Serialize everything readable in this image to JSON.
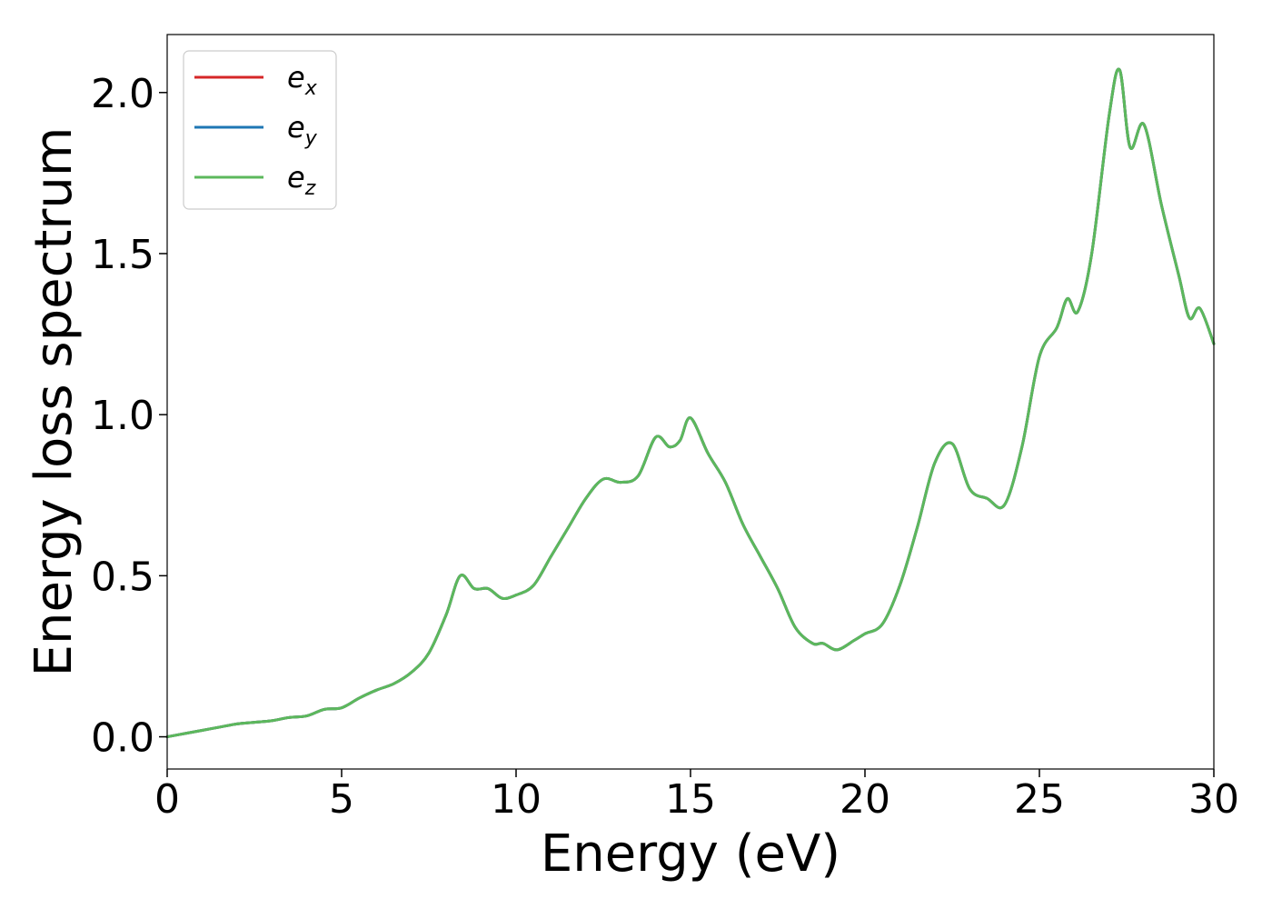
{
  "chart_data": {
    "type": "line",
    "xlabel": "Energy (eV)",
    "ylabel": "Energy loss spectrum",
    "xlim": [
      0,
      30
    ],
    "ylim": [
      -0.1,
      2.18
    ],
    "xticks": [
      0,
      5,
      10,
      15,
      20,
      25,
      30
    ],
    "xtick_labels": [
      "0",
      "5",
      "10",
      "15",
      "20",
      "25",
      "30"
    ],
    "yticks": [
      0.0,
      0.5,
      1.0,
      1.5,
      2.0
    ],
    "ytick_labels": [
      "0.0",
      "0.5",
      "1.0",
      "1.5",
      "2.0"
    ],
    "grid": false,
    "legend_position": "top-left",
    "x": [
      0,
      0.5,
      1,
      1.5,
      2,
      2.5,
      3,
      3.5,
      4,
      4.5,
      5,
      5.5,
      6,
      6.5,
      7,
      7.5,
      8,
      8.4,
      8.8,
      9.2,
      9.6,
      10,
      10.5,
      11,
      11.5,
      12,
      12.5,
      13,
      13.5,
      14,
      14.4,
      14.7,
      15,
      15.5,
      16,
      16.5,
      17,
      17.5,
      18,
      18.5,
      18.8,
      19.2,
      19.7,
      20,
      20.5,
      21,
      21.5,
      22,
      22.5,
      23,
      23.5,
      24,
      24.5,
      25,
      25.5,
      25.8,
      26.1,
      26.5,
      27,
      27.3,
      27.6,
      28,
      28.5,
      29,
      29.3,
      29.6,
      30
    ],
    "series": [
      {
        "name": "e_x",
        "color": "#d62728",
        "y": [
          0.0,
          0.01,
          0.02,
          0.03,
          0.04,
          0.045,
          0.05,
          0.06,
          0.065,
          0.085,
          0.09,
          0.12,
          0.145,
          0.165,
          0.2,
          0.26,
          0.38,
          0.5,
          0.46,
          0.46,
          0.43,
          0.44,
          0.47,
          0.56,
          0.65,
          0.74,
          0.8,
          0.79,
          0.81,
          0.93,
          0.9,
          0.92,
          0.99,
          0.88,
          0.79,
          0.66,
          0.56,
          0.46,
          0.34,
          0.29,
          0.29,
          0.27,
          0.3,
          0.32,
          0.35,
          0.47,
          0.65,
          0.85,
          0.91,
          0.77,
          0.74,
          0.72,
          0.9,
          1.18,
          1.27,
          1.36,
          1.32,
          1.5,
          1.93,
          2.07,
          1.83,
          1.9,
          1.65,
          1.43,
          1.3,
          1.33,
          1.22
        ]
      },
      {
        "name": "e_y",
        "color": "#1f77b4",
        "y": [
          0.0,
          0.01,
          0.02,
          0.03,
          0.04,
          0.045,
          0.05,
          0.06,
          0.065,
          0.085,
          0.09,
          0.12,
          0.145,
          0.165,
          0.2,
          0.26,
          0.38,
          0.5,
          0.46,
          0.46,
          0.43,
          0.44,
          0.47,
          0.56,
          0.65,
          0.74,
          0.8,
          0.79,
          0.81,
          0.93,
          0.9,
          0.92,
          0.99,
          0.88,
          0.79,
          0.66,
          0.56,
          0.46,
          0.34,
          0.29,
          0.29,
          0.27,
          0.3,
          0.32,
          0.35,
          0.47,
          0.65,
          0.85,
          0.91,
          0.77,
          0.74,
          0.72,
          0.9,
          1.18,
          1.27,
          1.36,
          1.32,
          1.5,
          1.93,
          2.07,
          1.83,
          1.9,
          1.65,
          1.43,
          1.3,
          1.33,
          1.22
        ]
      },
      {
        "name": "e_z",
        "color": "#5cb85c",
        "y": [
          0.0,
          0.01,
          0.02,
          0.03,
          0.04,
          0.045,
          0.05,
          0.06,
          0.065,
          0.085,
          0.09,
          0.12,
          0.145,
          0.165,
          0.2,
          0.26,
          0.38,
          0.5,
          0.46,
          0.46,
          0.43,
          0.44,
          0.47,
          0.56,
          0.65,
          0.74,
          0.8,
          0.79,
          0.81,
          0.93,
          0.9,
          0.92,
          0.99,
          0.88,
          0.79,
          0.66,
          0.56,
          0.46,
          0.34,
          0.29,
          0.29,
          0.27,
          0.3,
          0.32,
          0.35,
          0.47,
          0.65,
          0.85,
          0.91,
          0.77,
          0.74,
          0.72,
          0.9,
          1.18,
          1.27,
          1.36,
          1.32,
          1.5,
          1.93,
          2.07,
          1.83,
          1.9,
          1.65,
          1.43,
          1.3,
          1.33,
          1.22
        ]
      }
    ],
    "legend": [
      {
        "base": "e",
        "sub": "x",
        "color": "#d62728"
      },
      {
        "base": "e",
        "sub": "y",
        "color": "#1f77b4"
      },
      {
        "base": "e",
        "sub": "z",
        "color": "#5cb85c"
      }
    ]
  }
}
